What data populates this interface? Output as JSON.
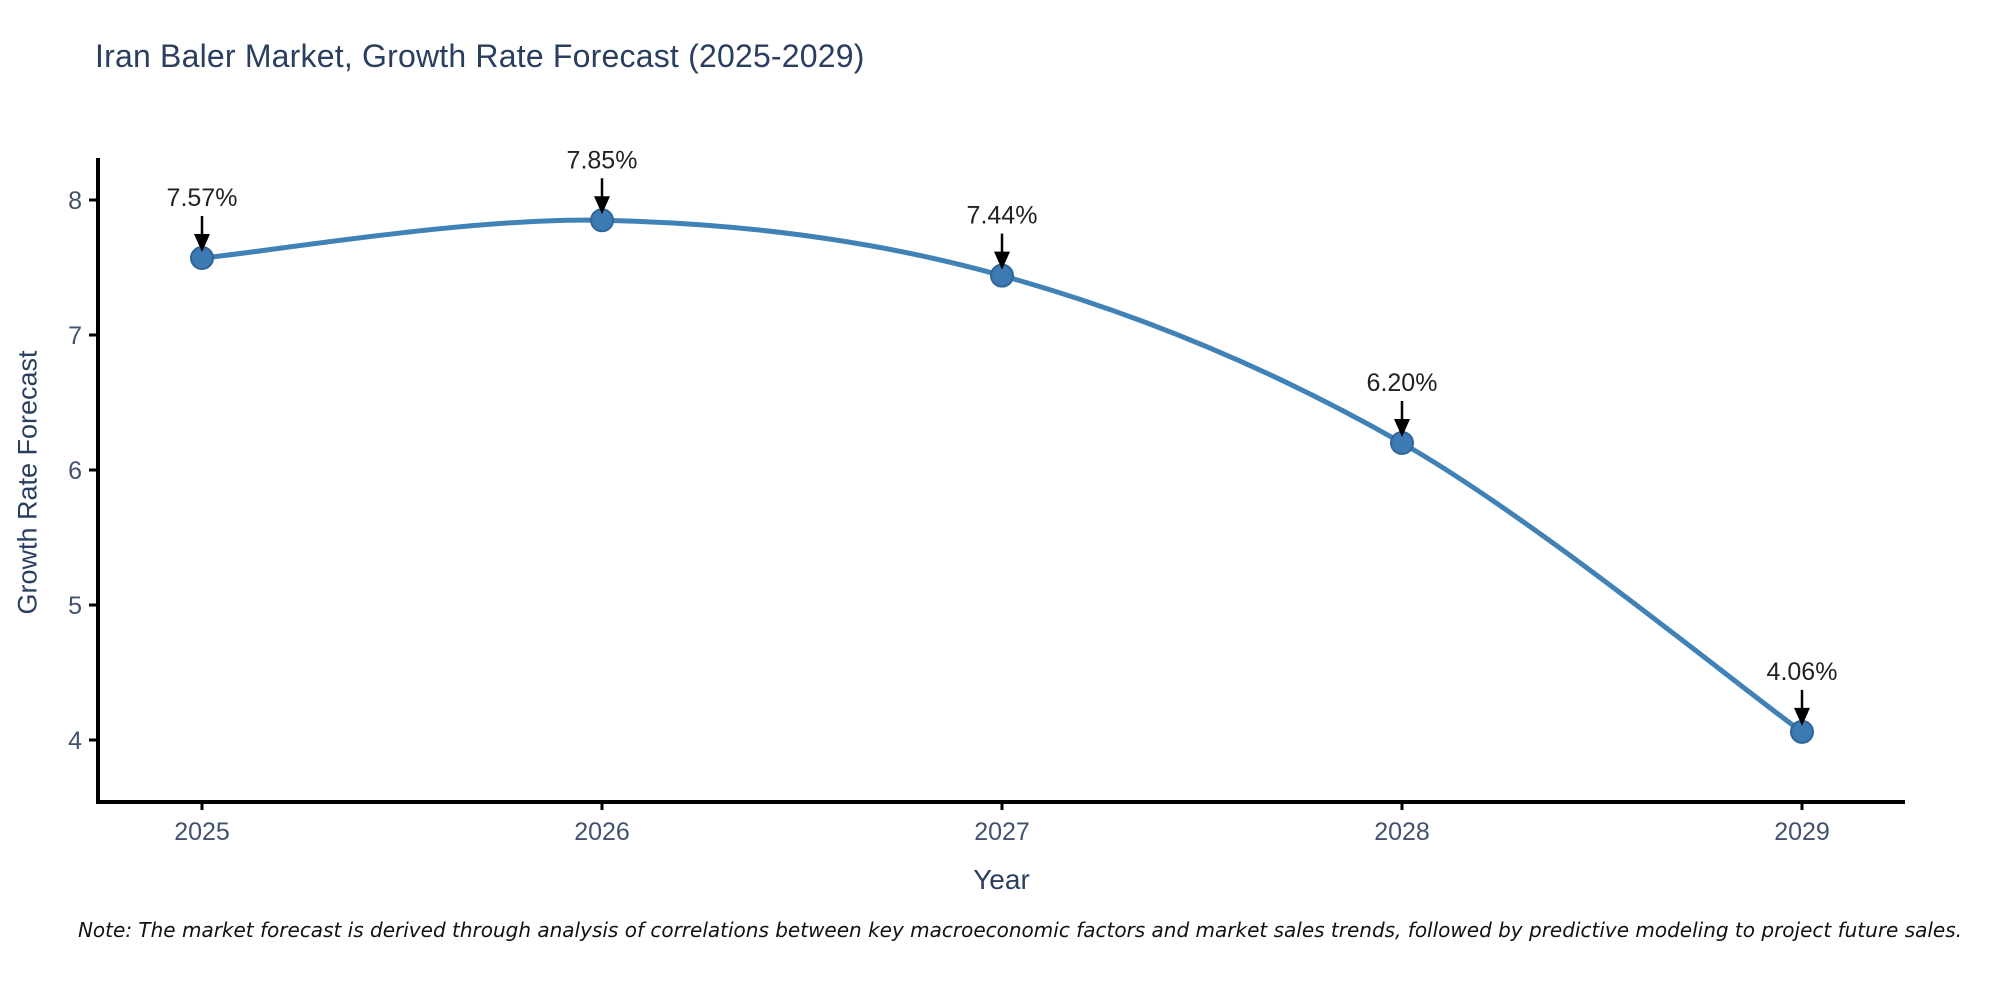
{
  "note": "Note: The market forecast is derived through analysis of correlations between key macroeconomic factors and market sales trends, followed by predictive modeling to project future sales.",
  "colors": {
    "line": "#4081b6",
    "marker_fill": "#3d7ab3",
    "marker_edge": "#2f6699",
    "axis": "#000000",
    "tick_label": "#42516d",
    "title": "#2a3f5f",
    "annotation_text": "#222222",
    "arrow": "#000000",
    "background": "#ffffff"
  },
  "chart_data": {
    "type": "line",
    "title": "Iran Baler Market, Growth Rate Forecast (2025-2029)",
    "categories": [
      "2025",
      "2026",
      "2027",
      "2028",
      "2029"
    ],
    "series": [
      {
        "name": "Growth Rate Forecast",
        "values": [
          7.57,
          7.85,
          7.44,
          6.2,
          4.06
        ]
      }
    ],
    "point_labels": [
      "7.57%",
      "7.85%",
      "7.44%",
      "6.20%",
      "4.06%"
    ],
    "xlabel": "Year",
    "ylabel": "Growth Rate Forecast",
    "yticks": [
      4,
      5,
      6,
      7,
      8
    ],
    "ylim": [
      3.55,
      8.33
    ],
    "grid": false,
    "legend": "none",
    "line_shape": "spline",
    "annotation_style": "value-above-with-down-arrow"
  }
}
